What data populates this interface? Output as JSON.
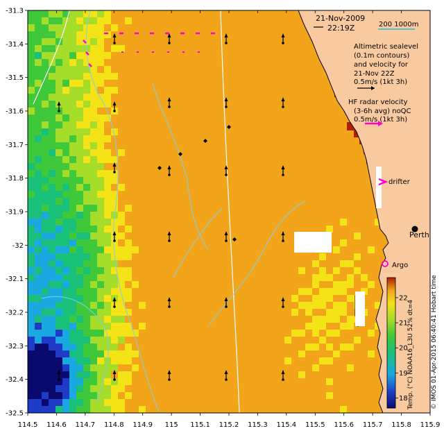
{
  "map": {
    "date": "21-Nov-2009",
    "time": "22:19Z",
    "scale_label": "200  1000m",
    "altimetry_lines": [
      "Altimetric sealevel",
      "(0.1m contours)",
      "and velocity for",
      "21-Nov 22Z",
      "0.5m/s (1kt 3h)"
    ],
    "hf_lines": [
      "HF radar velocity",
      "(3-6h avg) noQC",
      "0.5m/s (1kt 3h)"
    ],
    "drifter_label": "drifter",
    "argo_label": "Argo",
    "city_label": "Perth",
    "colorbar_label": "Temp. (°C) NOAA16_L3U 52% dt=4",
    "credit": "© IMOS 01-Apr-2015 06:40:41 Hobart time",
    "colorbar_ticks": [
      "22",
      "21",
      "20",
      "19",
      "18"
    ],
    "colorbar_range": [
      17.6,
      22.8
    ],
    "x_ticks": [
      "114.5",
      "114.6",
      "114.7",
      "114.8",
      "114.9",
      "115",
      "115.1",
      "115.2",
      "115.3",
      "115.4",
      "115.5",
      "115.6",
      "115.7",
      "115.8",
      "115.9"
    ],
    "y_ticks": [
      "-31.3",
      "-31.4",
      "-31.5",
      "-31.6",
      "-31.7",
      "-31.8",
      "-31.9",
      "-32",
      "-32.1",
      "-32.2",
      "-32.3",
      "-32.4",
      "-32.5"
    ],
    "lon_range": [
      114.5,
      115.9
    ],
    "lat_range": [
      -32.5,
      -31.3
    ],
    "colors": {
      "land": "#f9c9a0",
      "sst_warm": "#f4e316",
      "sst_cool": "#1aa8e0",
      "hf_vectors": "#ff00cc",
      "contours": "#7fd0e8",
      "isobath": "#ffffff"
    }
  }
}
